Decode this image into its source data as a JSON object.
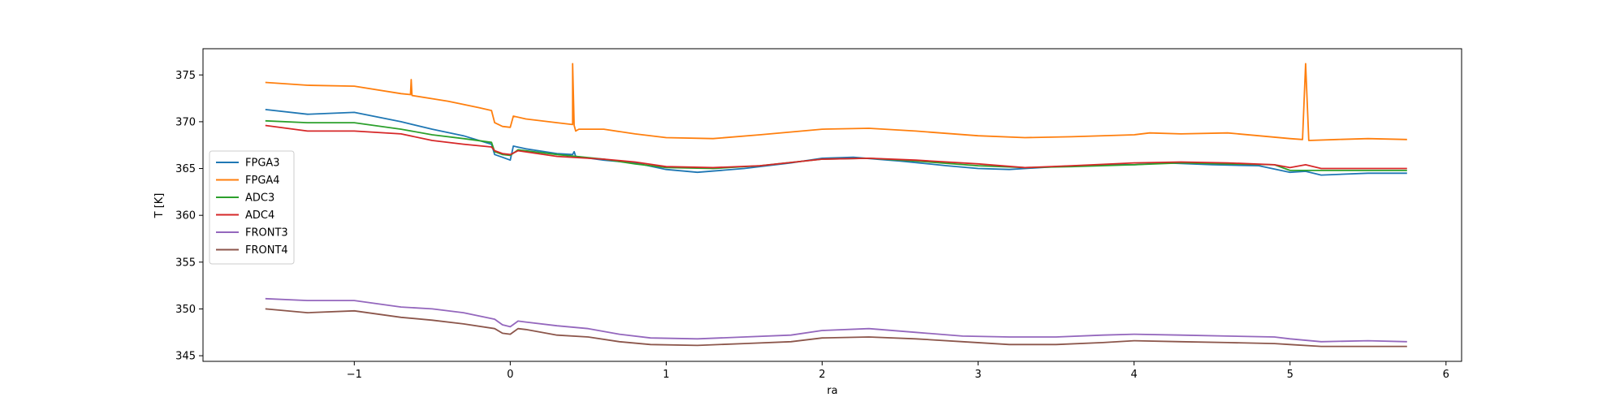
{
  "chart_data": {
    "type": "line",
    "xlabel": "ra",
    "ylabel": "T [K]",
    "xlim": [
      -1.97,
      6.1
    ],
    "ylim": [
      344.4,
      377.8
    ],
    "xticks": [
      -1,
      0,
      1,
      2,
      3,
      4,
      5,
      6
    ],
    "xtick_labels": [
      "−1",
      "0",
      "1",
      "2",
      "3",
      "4",
      "5",
      "6"
    ],
    "yticks": [
      345,
      350,
      355,
      360,
      365,
      370,
      375
    ],
    "ytick_labels": [
      "345",
      "350",
      "355",
      "360",
      "365",
      "370",
      "375"
    ],
    "grid": false,
    "legend_position": "center-left",
    "series": [
      {
        "name": "FPGA3",
        "color": "#1f77b4",
        "x": [
          -1.57,
          -1.3,
          -1.0,
          -0.7,
          -0.5,
          -0.3,
          -0.12,
          -0.1,
          -0.05,
          0.0,
          0.02,
          0.1,
          0.3,
          0.4,
          0.41,
          0.42,
          0.6,
          0.8,
          1.0,
          1.2,
          1.5,
          1.8,
          2.0,
          2.2,
          2.5,
          2.8,
          3.0,
          3.2,
          3.5,
          3.8,
          4.0,
          4.2,
          4.5,
          4.8,
          5.0,
          5.1,
          5.2,
          5.5,
          5.75
        ],
        "y": [
          371.3,
          370.8,
          371.0,
          370.0,
          369.2,
          368.5,
          367.6,
          366.5,
          366.2,
          365.9,
          367.4,
          367.1,
          366.6,
          366.5,
          366.8,
          366.3,
          365.9,
          365.6,
          364.9,
          364.6,
          365.0,
          365.6,
          366.1,
          366.2,
          365.8,
          365.3,
          365.0,
          364.9,
          365.2,
          365.4,
          365.4,
          365.6,
          365.4,
          365.3,
          364.6,
          364.7,
          364.3,
          364.5,
          364.5
        ]
      },
      {
        "name": "FPGA4",
        "color": "#ff7f0e",
        "x": [
          -1.57,
          -1.3,
          -1.0,
          -0.7,
          -0.64,
          -0.635,
          -0.63,
          -0.4,
          -0.2,
          -0.12,
          -0.1,
          -0.05,
          0.0,
          0.02,
          0.1,
          0.3,
          0.4,
          0.4,
          0.41,
          0.42,
          0.44,
          0.6,
          0.8,
          1.0,
          1.3,
          1.6,
          2.0,
          2.3,
          2.6,
          3.0,
          3.3,
          3.6,
          4.0,
          4.1,
          4.3,
          4.6,
          4.8,
          5.0,
          5.08,
          5.1,
          5.12,
          5.3,
          5.5,
          5.75
        ],
        "y": [
          374.2,
          373.9,
          373.8,
          373.0,
          372.9,
          374.5,
          372.8,
          372.2,
          371.5,
          371.2,
          369.9,
          369.5,
          369.4,
          370.6,
          370.3,
          369.9,
          369.7,
          376.2,
          369.6,
          369.0,
          369.2,
          369.2,
          368.7,
          368.3,
          368.2,
          368.6,
          369.2,
          369.3,
          369.0,
          368.5,
          368.3,
          368.4,
          368.6,
          368.8,
          368.7,
          368.8,
          368.5,
          368.2,
          368.1,
          376.2,
          368.0,
          368.1,
          368.2,
          368.1
        ]
      },
      {
        "name": "ADC3",
        "color": "#2ca02c",
        "x": [
          -1.57,
          -1.3,
          -1.0,
          -0.7,
          -0.5,
          -0.3,
          -0.12,
          -0.1,
          -0.05,
          0.0,
          0.05,
          0.3,
          0.6,
          0.8,
          1.0,
          1.3,
          1.6,
          2.0,
          2.3,
          2.6,
          3.0,
          3.3,
          3.6,
          4.0,
          4.3,
          4.6,
          4.9,
          5.0,
          5.2,
          5.5,
          5.75
        ],
        "y": [
          370.1,
          369.9,
          369.9,
          369.2,
          368.6,
          368.2,
          367.8,
          366.8,
          366.5,
          366.4,
          367.0,
          366.5,
          366.0,
          365.5,
          365.1,
          365.0,
          365.3,
          366.0,
          366.1,
          365.8,
          365.3,
          365.1,
          365.2,
          365.4,
          365.6,
          365.5,
          365.4,
          364.8,
          364.8,
          364.8,
          364.8
        ]
      },
      {
        "name": "ADC4",
        "color": "#d62728",
        "x": [
          -1.57,
          -1.3,
          -1.0,
          -0.7,
          -0.5,
          -0.3,
          -0.12,
          -0.1,
          -0.05,
          0.0,
          0.05,
          0.3,
          0.6,
          0.8,
          1.0,
          1.3,
          1.6,
          2.0,
          2.3,
          2.6,
          3.0,
          3.3,
          3.6,
          4.0,
          4.3,
          4.6,
          4.9,
          5.0,
          5.1,
          5.2,
          5.5,
          5.75
        ],
        "y": [
          369.6,
          369.0,
          369.0,
          368.7,
          368.0,
          367.6,
          367.3,
          366.9,
          366.6,
          366.5,
          366.9,
          366.3,
          366.0,
          365.7,
          365.2,
          365.1,
          365.3,
          366.0,
          366.1,
          365.9,
          365.5,
          365.1,
          365.3,
          365.6,
          365.7,
          365.6,
          365.4,
          365.1,
          365.4,
          365.0,
          365.0,
          365.0
        ]
      },
      {
        "name": "FRONT3",
        "color": "#9467bd",
        "x": [
          -1.57,
          -1.3,
          -1.0,
          -0.7,
          -0.5,
          -0.3,
          -0.1,
          -0.05,
          0.0,
          0.05,
          0.1,
          0.3,
          0.5,
          0.7,
          0.9,
          1.2,
          1.5,
          1.8,
          2.0,
          2.3,
          2.6,
          2.9,
          3.2,
          3.5,
          3.8,
          4.0,
          4.3,
          4.6,
          4.9,
          5.0,
          5.2,
          5.5,
          5.75
        ],
        "y": [
          351.1,
          350.9,
          350.9,
          350.2,
          350.0,
          349.6,
          348.9,
          348.3,
          348.1,
          348.7,
          348.6,
          348.2,
          347.9,
          347.3,
          346.9,
          346.8,
          347.0,
          347.2,
          347.7,
          347.9,
          347.5,
          347.1,
          347.0,
          347.0,
          347.2,
          347.3,
          347.2,
          347.1,
          347.0,
          346.8,
          346.5,
          346.6,
          346.5
        ]
      },
      {
        "name": "FRONT4",
        "color": "#8c564b",
        "x": [
          -1.57,
          -1.3,
          -1.0,
          -0.7,
          -0.5,
          -0.3,
          -0.1,
          -0.05,
          0.0,
          0.05,
          0.1,
          0.3,
          0.5,
          0.7,
          0.9,
          1.2,
          1.5,
          1.8,
          2.0,
          2.3,
          2.6,
          2.9,
          3.2,
          3.5,
          3.8,
          4.0,
          4.3,
          4.6,
          4.9,
          5.0,
          5.2,
          5.5,
          5.75
        ],
        "y": [
          350.0,
          349.6,
          349.8,
          349.1,
          348.8,
          348.4,
          347.9,
          347.4,
          347.3,
          347.9,
          347.8,
          347.2,
          347.0,
          346.5,
          346.2,
          346.1,
          346.3,
          346.5,
          346.9,
          347.0,
          346.8,
          346.5,
          346.2,
          346.2,
          346.4,
          346.6,
          346.5,
          346.4,
          346.3,
          346.2,
          346.0,
          346.0,
          346.0
        ]
      }
    ]
  }
}
